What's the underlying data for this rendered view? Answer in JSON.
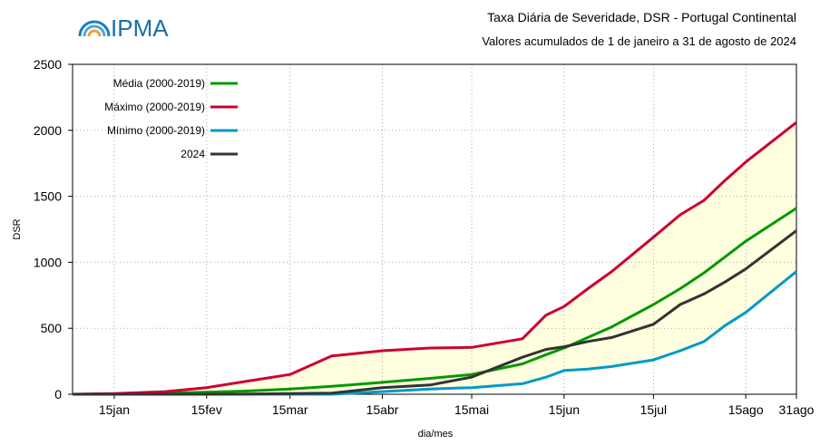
{
  "logo": "IPMA",
  "chart_data": {
    "type": "line",
    "title": "Taxa Diária de Severidade, DSR - Portugal Continental",
    "subtitle": "Valores acumulados de 1 de janeiro a 31 de agosto de 2024",
    "x_label": "dia/mes",
    "y_label": "DSR",
    "x": [
      1,
      15,
      32,
      46,
      60,
      74,
      88,
      105,
      121,
      135,
      152,
      160,
      166,
      174,
      182,
      196,
      205,
      213,
      220,
      227,
      244
    ],
    "series": [
      {
        "name": "Média (2000-2019)",
        "color": "#009900",
        "values": [
          0,
          3,
          8,
          15,
          25,
          40,
          60,
          90,
          120,
          150,
          230,
          300,
          350,
          430,
          510,
          680,
          800,
          920,
          1040,
          1160,
          1410
        ]
      },
      {
        "name": "Máximo (2000-2019)",
        "color": "#cc0033",
        "values": [
          0,
          5,
          20,
          50,
          100,
          150,
          290,
          330,
          350,
          355,
          420,
          600,
          665,
          800,
          930,
          1190,
          1360,
          1470,
          1620,
          1760,
          2060
        ]
      },
      {
        "name": "Mínimo (2000-2019)",
        "color": "#0099cc",
        "values": [
          0,
          0,
          0,
          0,
          0,
          0,
          0,
          20,
          40,
          50,
          80,
          130,
          180,
          190,
          210,
          260,
          330,
          400,
          520,
          620,
          930
        ]
      },
      {
        "name": "2024",
        "color": "#333333",
        "values": [
          0,
          0,
          0,
          0,
          2,
          5,
          8,
          50,
          70,
          130,
          280,
          340,
          360,
          400,
          430,
          530,
          680,
          760,
          850,
          950,
          1240
        ]
      }
    ],
    "band_color": "#ffffe0",
    "xlim": [
      1,
      244
    ],
    "xticks": [
      {
        "value": 15,
        "label": "15jan"
      },
      {
        "value": 46,
        "label": "15fev"
      },
      {
        "value": 74,
        "label": "15mar"
      },
      {
        "value": 105,
        "label": "15abr"
      },
      {
        "value": 135,
        "label": "15mai"
      },
      {
        "value": 166,
        "label": "15jun"
      },
      {
        "value": 196,
        "label": "15jul"
      },
      {
        "value": 227,
        "label": "15ago"
      },
      {
        "value": 244,
        "label": "31ago"
      }
    ],
    "ylim": [
      0,
      2500
    ],
    "yticks": [
      0,
      500,
      1000,
      1500,
      2000,
      2500
    ],
    "grid": true,
    "legend": "top-left"
  }
}
